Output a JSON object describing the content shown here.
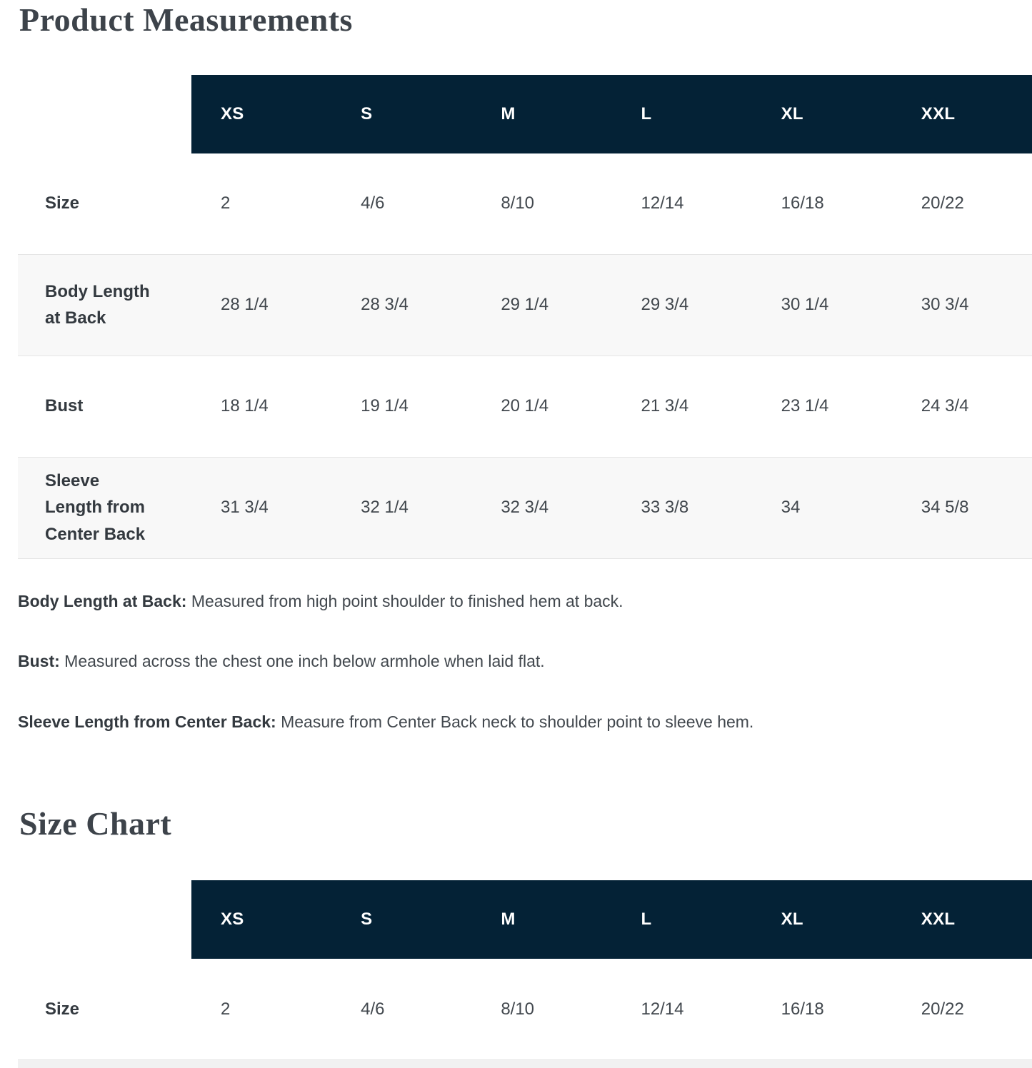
{
  "colors": {
    "table_header_bg": "#042236",
    "table_header_text": "#ffffff",
    "row_stripe": "#f8f8f8",
    "row_border": "#e5e5e5",
    "heading_text": "#3d434a",
    "body_text": "#41474d"
  },
  "product_measurements": {
    "title": "Product Measurements",
    "table": {
      "columns": [
        "XS",
        "S",
        "M",
        "L",
        "XL",
        "XXL"
      ],
      "rows": [
        {
          "label": "Size",
          "values": [
            "2",
            "4/6",
            "8/10",
            "12/14",
            "16/18",
            "20/22"
          ]
        },
        {
          "label": "Body Length at Back",
          "values": [
            "28 1/4",
            "28 3/4",
            "29 1/4",
            "29 3/4",
            "30 1/4",
            "30 3/4"
          ]
        },
        {
          "label": "Bust",
          "values": [
            "18 1/4",
            "19 1/4",
            "20 1/4",
            "21 3/4",
            "23 1/4",
            "24 3/4"
          ]
        },
        {
          "label": "Sleeve Length from Center Back",
          "values": [
            "31 3/4",
            "32 1/4",
            "32 3/4",
            "33 3/8",
            "34",
            "34 5/8"
          ]
        }
      ]
    },
    "definitions": [
      {
        "term": "Body Length at Back:",
        "description": "Measured from high point shoulder to finished hem at back."
      },
      {
        "term": "Bust:",
        "description": "Measured across the chest one inch below armhole when laid flat."
      },
      {
        "term": "Sleeve Length from Center Back:",
        "description": "Measure from Center Back neck to shoulder point to sleeve hem."
      }
    ]
  },
  "size_chart": {
    "title": "Size Chart",
    "table": {
      "columns": [
        "XS",
        "S",
        "M",
        "L",
        "XL",
        "XXL"
      ],
      "rows": [
        {
          "label": "Size",
          "values": [
            "2",
            "4/6",
            "8/10",
            "12/14",
            "16/18",
            "20/22"
          ]
        }
      ]
    }
  }
}
